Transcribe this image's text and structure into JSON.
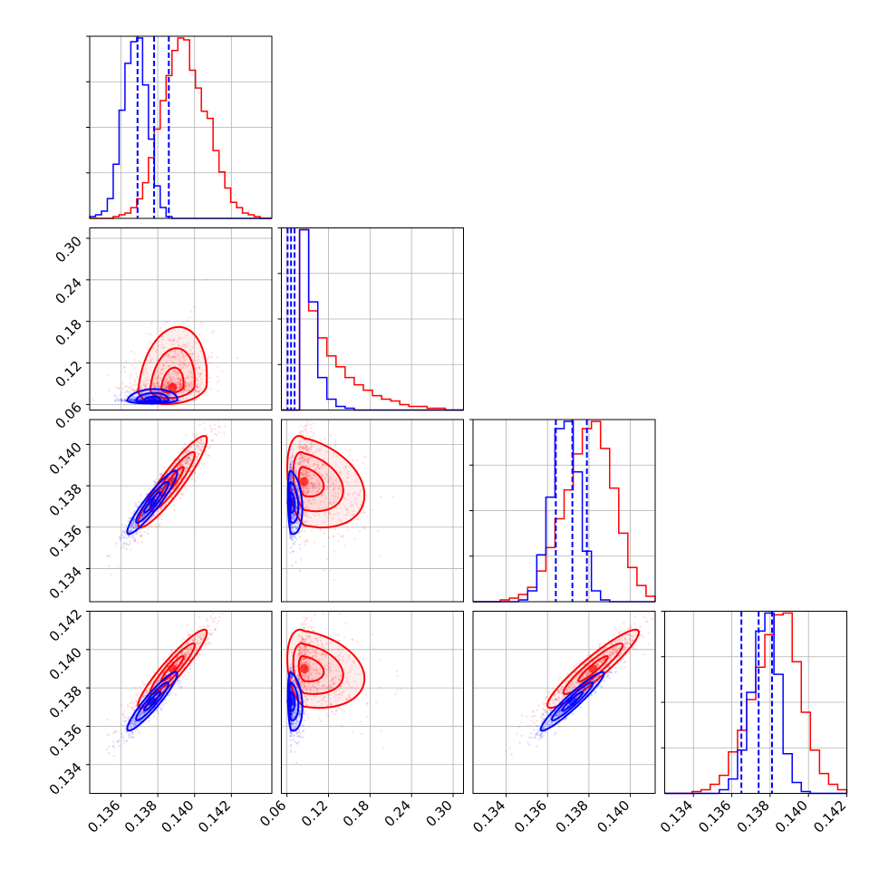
{
  "chart_data": {
    "type": "corner",
    "title": "",
    "grid": true,
    "colors": {
      "series_a": "#ff0000",
      "series_b": "#0000ff",
      "grid": "#b0b0b0",
      "frame": "#000000"
    },
    "parameters": [
      {
        "range": [
          0.1343,
          0.1442
        ],
        "ticks": [
          0.136,
          0.138,
          0.14,
          0.142
        ],
        "tick_labels": [
          "0.136",
          "0.138",
          "0.140",
          "0.142"
        ]
      },
      {
        "range": [
          0.052,
          0.315
        ],
        "ticks": [
          0.06,
          0.12,
          0.18,
          0.24,
          0.3
        ],
        "tick_labels": [
          "0.06",
          "0.12",
          "0.18",
          "0.24",
          "0.30"
        ]
      },
      {
        "range": [
          0.1324,
          0.1412
        ],
        "ticks": [
          0.134,
          0.136,
          0.138,
          0.14
        ],
        "tick_labels": [
          "0.134",
          "0.136",
          "0.138",
          "0.140"
        ]
      },
      {
        "range": [
          0.1325,
          0.142
        ],
        "ticks": [
          0.134,
          0.136,
          0.138,
          0.14,
          0.142
        ],
        "tick_labels": [
          "0.134",
          "0.136",
          "0.138",
          "0.140",
          "0.142"
        ]
      }
    ],
    "series": [
      {
        "color": "#ff0000",
        "mean": [
          0.1388,
          0.085,
          0.1382,
          0.139
        ],
        "sd": [
          0.0011,
          0.032,
          0.0013,
          0.0012
        ],
        "corr": [
          [
            0,
            1,
            0.18
          ],
          [
            0,
            2,
            0.92
          ],
          [
            0,
            3,
            0.93
          ],
          [
            1,
            2,
            -0.3
          ],
          [
            1,
            3,
            -0.25
          ],
          [
            2,
            3,
            0.93
          ]
        ],
        "hist": [
          {
            "edges": [
              0.1343,
              0.1442
            ],
            "counts": [
              0,
              0,
              0,
              0,
              1,
              2,
              3,
              6,
              11,
              20,
              34,
              50,
              66,
              80,
              94,
              101,
              100,
              83,
              73,
              60,
              56,
              38,
              26,
              17,
              9,
              6,
              3,
              2,
              1,
              0,
              0
            ]
          },
          {
            "edges": [
              0.052,
              0.315
            ],
            "counts": [
              0,
              0,
              100,
              55,
              40,
              30,
              24,
              18,
              14,
              11,
              8,
              6,
              5,
              3,
              2,
              2,
              1,
              1,
              0,
              0
            ]
          },
          {
            "edges": [
              0.1324,
              0.1412
            ],
            "counts": [
              0,
              0,
              0,
              1,
              2,
              4,
              8,
              17,
              30,
              46,
              62,
              82,
              96,
              100,
              85,
              63,
              38,
              19,
              9,
              3
            ]
          },
          {
            "edges": [
              0.1325,
              0.142
            ],
            "counts": [
              0,
              0,
              0,
              1,
              2,
              5,
              10,
              23,
              35,
              52,
              70,
              88,
              99,
              100,
              73,
              45,
              24,
              11,
              5,
              2
            ]
          }
        ]
      },
      {
        "color": "#0000ff",
        "mean": [
          0.1377,
          0.066,
          0.1372,
          0.1373
        ],
        "sd": [
          0.0008,
          0.006,
          0.0009,
          0.0009
        ],
        "corr": [
          [
            0,
            1,
            0.1
          ],
          [
            0,
            2,
            0.93
          ],
          [
            0,
            3,
            0.93
          ],
          [
            1,
            2,
            -0.2
          ],
          [
            1,
            3,
            -0.2
          ],
          [
            2,
            3,
            0.95
          ]
        ],
        "quantiles": [
          [
            0.1369,
            0.1378,
            0.1386
          ],
          [
            0.061,
            0.066,
            0.071
          ],
          [
            0.1364,
            0.1372,
            0.1379
          ],
          [
            0.1365,
            0.1374,
            0.1381
          ]
        ],
        "hist": [
          {
            "edges": [
              0.1343,
              0.1442
            ],
            "counts": [
              1,
              2,
              4,
              11,
              30,
              60,
              86,
              98,
              100,
              74,
              44,
              18,
              6,
              1,
              0,
              0,
              0,
              0,
              0,
              0,
              0,
              0,
              0,
              0,
              0,
              0,
              0,
              0,
              0,
              0,
              0
            ]
          },
          {
            "edges": [
              0.052,
              0.315
            ],
            "counts": [
              0,
              0,
              100,
              60,
              18,
              6,
              2,
              1,
              0,
              0,
              0,
              0,
              0,
              0,
              0,
              0,
              0,
              0,
              0,
              0
            ]
          },
          {
            "edges": [
              0.1324,
              0.1412
            ],
            "counts": [
              0,
              0,
              0,
              0,
              0,
              1,
              6,
              26,
              58,
              96,
              100,
              72,
              28,
              6,
              1,
              0,
              0,
              0,
              0,
              0
            ]
          },
          {
            "edges": [
              0.1325,
              0.142
            ],
            "counts": [
              0,
              0,
              0,
              0,
              0,
              0,
              2,
              8,
              24,
              56,
              90,
              100,
              66,
              22,
              6,
              1,
              0,
              0,
              0,
              0
            ]
          }
        ]
      }
    ]
  }
}
